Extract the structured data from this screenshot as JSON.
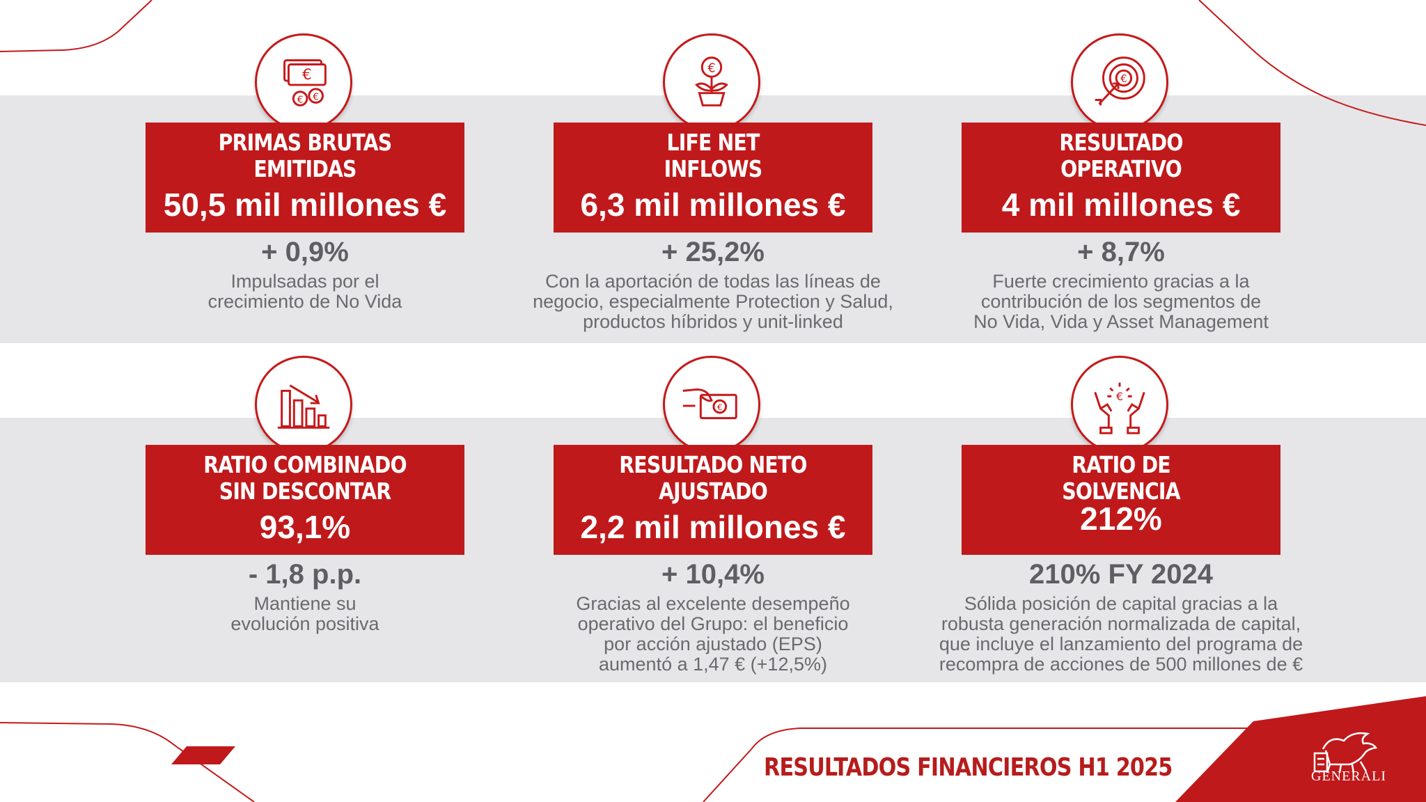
{
  "colors": {
    "accent": "#c0191b",
    "band": "#e6e6e8",
    "text_dark": "#5f5f63",
    "text_light": "#6a6a6e"
  },
  "cards": [
    {
      "icon": "euro-banknotes-coins-icon",
      "title_line1": "PRIMAS BRUTAS",
      "title_line2": "EMITIDAS",
      "value": "50,5 mil millones €",
      "change": "+ 0,9%",
      "desc_line1": "Impulsadas por el",
      "desc_line2": "crecimiento de No Vida",
      "desc_line3": "",
      "desc_line4": ""
    },
    {
      "icon": "euro-plant-pot-icon",
      "title_line1": "LIFE NET",
      "title_line2": "INFLOWS",
      "value": "6,3 mil millones €",
      "change": "+ 25,2%",
      "desc_line1": "Con la aportación de todas las líneas de",
      "desc_line2": "negocio, especialmente Protection y Salud,",
      "desc_line3": "productos híbridos y unit-linked",
      "desc_line4": ""
    },
    {
      "icon": "euro-target-arrow-icon",
      "title_line1": "RESULTADO",
      "title_line2": "OPERATIVO",
      "value": "4 mil millones €",
      "change": "+ 8,7%",
      "desc_line1": "Fuerte crecimiento gracias a la",
      "desc_line2": "contribución de los segmentos de",
      "desc_line3": "No Vida, Vida y Asset Management",
      "desc_line4": ""
    },
    {
      "icon": "declining-bar-chart-icon",
      "title_line1": "RATIO COMBINADO",
      "title_line2": "SIN DESCONTAR",
      "value": "93,1%",
      "change": "- 1,8 p.p.",
      "desc_line1": "Mantiene su",
      "desc_line2": "evolución positiva",
      "desc_line3": "",
      "desc_line4": ""
    },
    {
      "icon": "hand-euro-banknote-icon",
      "title_line1": "RESULTADO NETO",
      "title_line2": "AJUSTADO",
      "value": "2,2 mil millones €",
      "change": "+ 10,4%",
      "desc_line1": "Gracias al excelente desempeño",
      "desc_line2": "operativo del Grupo: el beneficio",
      "desc_line3": "por acción ajustado (EPS)",
      "desc_line4": "aumentó a 1,47 € (+12,5%)"
    },
    {
      "icon": "hands-protecting-euro-icon",
      "title_line1": "RATIO DE",
      "title_line2": "SOLVENCIA",
      "value": "212%",
      "change": "210% FY 2024",
      "desc_line1": "Sólida posición de capital gracias a la",
      "desc_line2": "robusta generación normalizada de capital,",
      "desc_line3": "que incluye el lanzamiento del programa de",
      "desc_line4": "recompra de acciones de 500 millones de €"
    }
  ],
  "footer": {
    "title": "RESULTADOS FINANCIEROS H1 2025",
    "logo_text": "GENERALI",
    "logo_icon": "winged-lion-icon"
  }
}
